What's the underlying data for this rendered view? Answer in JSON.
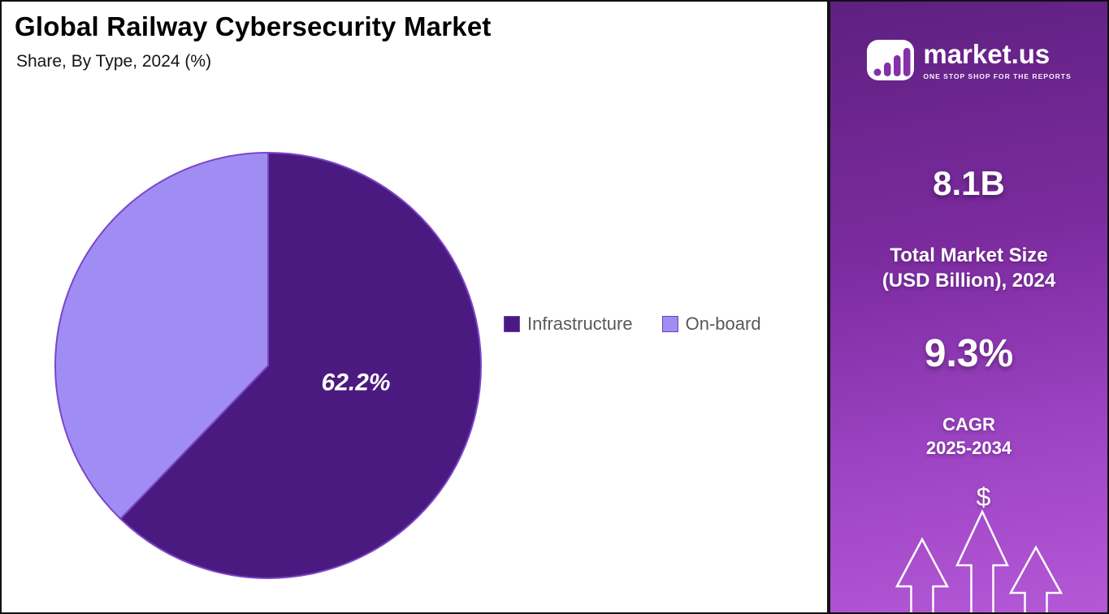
{
  "chart_data": {
    "type": "pie",
    "title": "Global Railway Cybersecurity Market",
    "subtitle": "Share, By Type, 2024 (%)",
    "categories": [
      "Infrastructure",
      "On-board"
    ],
    "values": [
      62.2,
      37.8
    ],
    "colors": [
      "#4b1a80",
      "#9f8df3"
    ],
    "stroke_color": "#7d45c8",
    "slice_labels": [
      "62.2%",
      ""
    ],
    "legend_position": "right"
  },
  "sidebar": {
    "logo_brand": "market.us",
    "logo_tagline": "ONE STOP SHOP FOR THE REPORTS",
    "stat1_value": "8.1B",
    "stat1_label_line1": "Total Market Size",
    "stat1_label_line2": "(USD Billion), 2024",
    "stat2_value": "9.3%",
    "stat2_label_line1": "CAGR",
    "stat2_label_line2": "2025-2034",
    "currency_symbol": "$",
    "accent_gradient_top": "#5e2080",
    "accent_gradient_bottom": "#b458d6"
  }
}
